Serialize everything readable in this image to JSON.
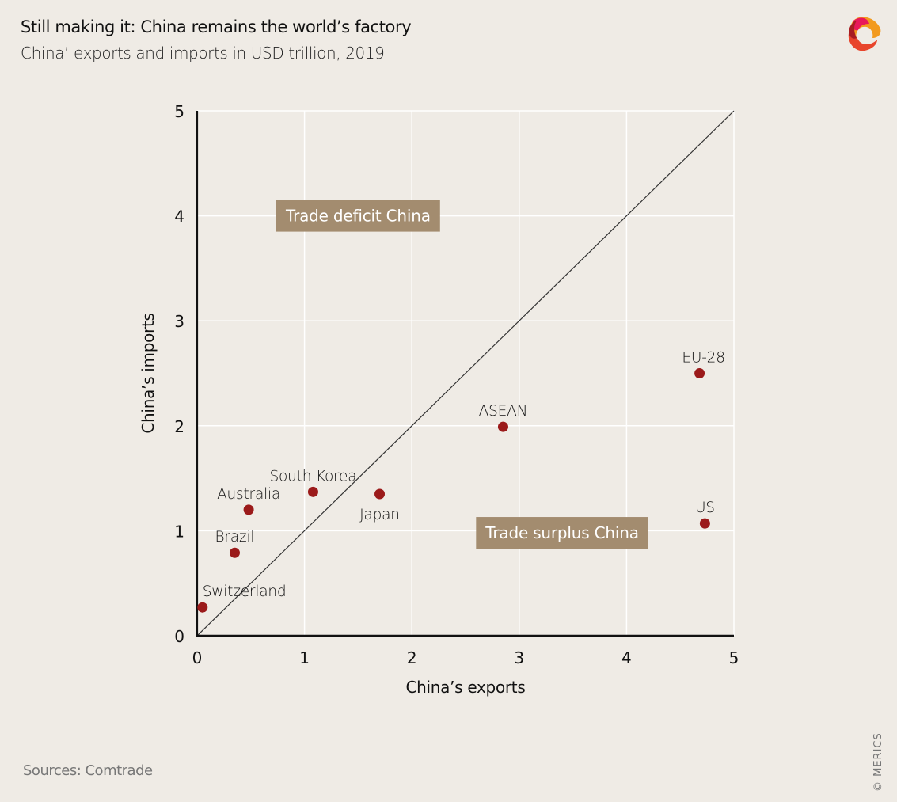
{
  "header": {
    "title": "Still making it: China remains the world’s factory",
    "subtitle": "China’ exports and imports in USD trillion, 2019"
  },
  "footer": {
    "source": "Sources: Comtrade",
    "copyright": "© MERICS"
  },
  "logo": {
    "name": "merics-logo-icon"
  },
  "colors": {
    "background": "#efebe5",
    "point": "#9b1a1a",
    "annotation_box": "#a38c6f",
    "gridline": "#ffffff",
    "axis": "#111111"
  },
  "chart_data": {
    "type": "scatter",
    "title": "Still making it: China remains the world’s factory",
    "subtitle": "China’ exports and imports in USD trillion, 2019",
    "xlabel": "China’s exports",
    "ylabel": "China’s imports",
    "xlim": [
      0,
      5
    ],
    "ylim": [
      0,
      5
    ],
    "xticks": [
      0,
      1,
      2,
      3,
      4,
      5
    ],
    "yticks": [
      0,
      1,
      2,
      3,
      4,
      5
    ],
    "grid": true,
    "reference_line": {
      "type": "diagonal",
      "from": [
        0,
        0
      ],
      "to": [
        5,
        5
      ]
    },
    "points": [
      {
        "label": "Switzerland",
        "x": 0.05,
        "y": 0.27
      },
      {
        "label": "Brazil",
        "x": 0.35,
        "y": 0.79
      },
      {
        "label": "Australia",
        "x": 0.48,
        "y": 1.2
      },
      {
        "label": "South Korea",
        "x": 1.08,
        "y": 1.37
      },
      {
        "label": "Japan",
        "x": 1.7,
        "y": 1.35
      },
      {
        "label": "ASEAN",
        "x": 2.85,
        "y": 1.99
      },
      {
        "label": "EU-28",
        "x": 4.68,
        "y": 2.5
      },
      {
        "label": "US",
        "x": 4.73,
        "y": 1.07
      }
    ],
    "annotations": [
      {
        "text": "Trade deficit China",
        "x": 1.5,
        "y": 4.0
      },
      {
        "text": "Trade surplus China",
        "x": 3.4,
        "y": 0.98
      }
    ]
  }
}
